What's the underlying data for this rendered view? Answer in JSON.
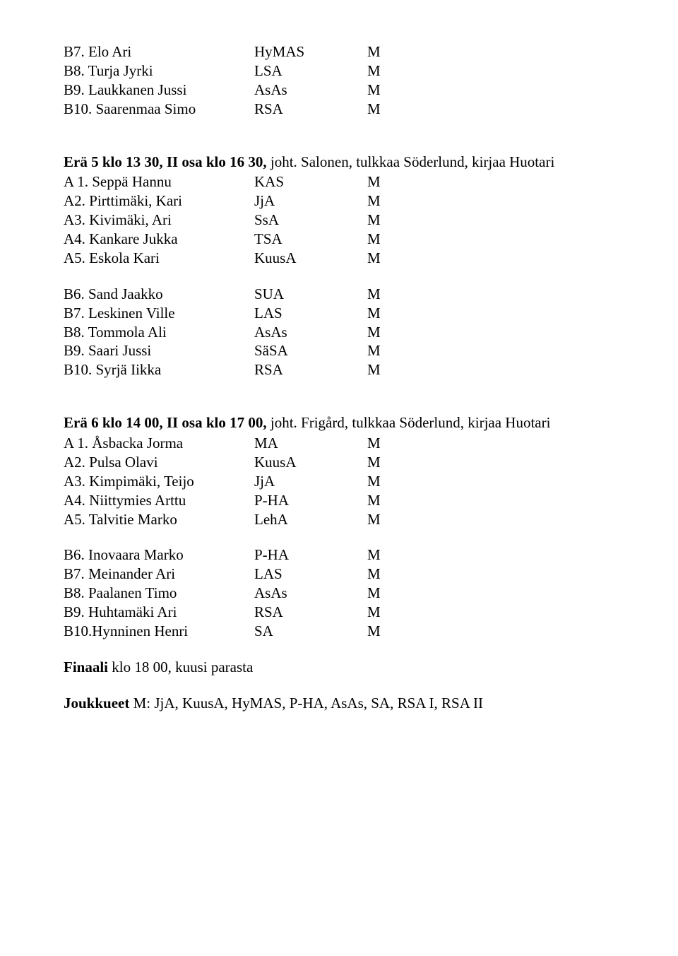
{
  "blockTop": {
    "rows": [
      {
        "c1": "B7. Elo Ari",
        "c2": "HyMAS",
        "c3": "M"
      },
      {
        "c1": "B8. Turja Jyrki",
        "c2": "LSA",
        "c3": "M"
      },
      {
        "c1": "B9. Laukkanen Jussi",
        "c2": "AsAs",
        "c3": "M"
      },
      {
        "c1": "B10. Saarenmaa Simo",
        "c2": "RSA",
        "c3": "M"
      }
    ]
  },
  "heat5": {
    "title_bold": "Erä 5 klo 13 30, II osa klo 16 30, ",
    "title_rest": "joht. Salonen, tulkkaa Söderlund, kirjaa Huotari",
    "groupA": [
      {
        "c1": "A 1. Seppä Hannu",
        "c2": "KAS",
        "c3": "M"
      },
      {
        "c1": "A2. Pirttimäki, Kari",
        "c2": "JjA",
        "c3": "M"
      },
      {
        "c1": "A3. Kivimäki, Ari",
        "c2": "SsA",
        "c3": "M"
      },
      {
        "c1": "A4. Kankare Jukka",
        "c2": "TSA",
        "c3": "M"
      },
      {
        "c1": "A5. Eskola Kari",
        "c2": "KuusA",
        "c3": "M"
      }
    ],
    "groupB": [
      {
        "c1": "B6. Sand Jaakko",
        "c2": "SUA",
        "c3": "M"
      },
      {
        "c1": "B7. Leskinen Ville",
        "c2": "LAS",
        "c3": "M"
      },
      {
        "c1": "B8. Tommola Ali",
        "c2": "AsAs",
        "c3": "M"
      },
      {
        "c1": "B9. Saari Jussi",
        "c2": "SäSA",
        "c3": "M"
      },
      {
        "c1": "B10. Syrjä Iikka",
        "c2": "RSA",
        "c3": "M"
      }
    ]
  },
  "heat6": {
    "title_bold": "Erä 6 klo 14 00, II osa klo 17 00, ",
    "title_rest": "joht. Frigård, tulkkaa Söderlund, kirjaa Huotari",
    "groupA": [
      {
        "c1": "A 1. Åsbacka Jorma",
        "c2": "MA",
        "c3": "M"
      },
      {
        "c1": "A2. Pulsa Olavi",
        "c2": "KuusA",
        "c3": "M"
      },
      {
        "c1": "A3. Kimpimäki, Teijo",
        "c2": "JjA",
        "c3": "M"
      },
      {
        "c1": "A4. Niittymies Arttu",
        "c2": "P-HA",
        "c3": "M"
      },
      {
        "c1": "A5. Talvitie Marko",
        "c2": "LehA",
        "c3": "M"
      }
    ],
    "groupB": [
      {
        "c1": "B6. Inovaara Marko",
        "c2": "P-HA",
        "c3": "M"
      },
      {
        "c1": "B7. Meinander Ari",
        "c2": "LAS",
        "c3": "M"
      },
      {
        "c1": "B8. Paalanen Timo",
        "c2": "AsAs",
        "c3": "M"
      },
      {
        "c1": "B9. Huhtamäki Ari",
        "c2": "RSA",
        "c3": "M"
      },
      {
        "c1": "B10.Hynninen Henri",
        "c2": "SA",
        "c3": "M"
      }
    ]
  },
  "final_bold": "Finaali ",
  "final_rest": "klo 18 00, kuusi parasta",
  "teams_bold": "Joukkueet ",
  "teams_rest": "M: JjA, KuusA, HyMAS, P-HA, AsAs, SA, RSA I, RSA II"
}
